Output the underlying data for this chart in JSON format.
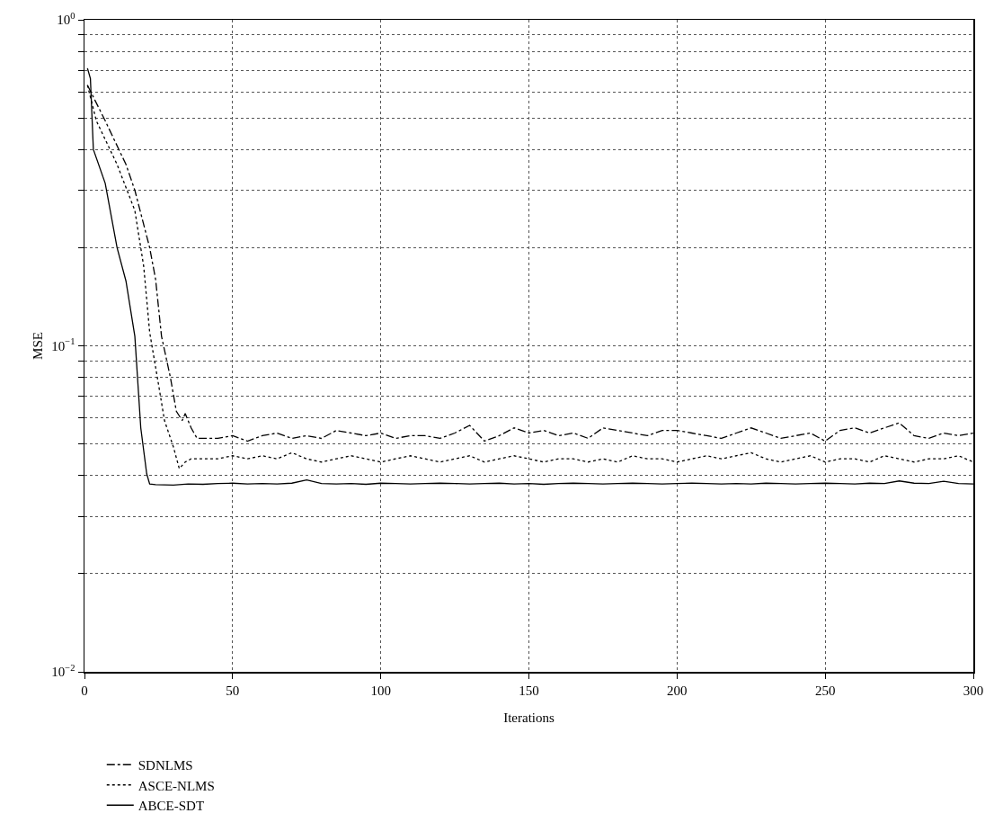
{
  "chart_data": {
    "type": "line",
    "xlabel": "Iterations",
    "ylabel": "MSE",
    "log": "y",
    "grid": true,
    "legend": "bottom left",
    "marker": "none",
    "xlim": [
      0,
      300
    ],
    "ylim": [
      0.01,
      1
    ],
    "xticks": [
      0,
      50,
      100,
      150,
      200,
      250,
      300
    ],
    "yticks": [
      {
        "value": 0.01,
        "label": "10$^{−2}$"
      },
      {
        "value": 0.02,
        "label": null
      },
      {
        "value": 0.03,
        "label": null
      },
      {
        "value": 0.04,
        "label": null
      },
      {
        "value": 0.05,
        "label": null
      },
      {
        "value": 0.06,
        "label": null
      },
      {
        "value": 0.07,
        "label": null
      },
      {
        "value": 0.08,
        "label": null
      },
      {
        "value": 0.09,
        "label": null
      },
      {
        "value": 0.1,
        "label": "10$^{−1}$"
      },
      {
        "value": 0.2,
        "label": null
      },
      {
        "value": 0.3,
        "label": null
      },
      {
        "value": 0.4,
        "label": null
      },
      {
        "value": 0.5,
        "label": null
      },
      {
        "value": 0.6,
        "label": null
      },
      {
        "value": 0.7,
        "label": null
      },
      {
        "value": 0.8,
        "label": null
      },
      {
        "value": 0.9,
        "label": null
      },
      {
        "value": 1,
        "label": "10$^{0}$"
      }
    ],
    "series": [
      {
        "name": "SDNLMS",
        "color": "#000000",
        "line_style": "dashdot",
        "x": [
          1,
          7,
          14,
          17,
          22,
          24,
          26,
          29,
          31,
          33,
          34,
          36,
          38,
          40,
          45,
          50,
          55,
          60,
          65,
          70,
          75,
          80,
          85,
          90,
          95,
          100,
          105,
          110,
          115,
          120,
          125,
          130,
          135,
          140,
          145,
          150,
          155,
          160,
          165,
          170,
          175,
          180,
          185,
          190,
          195,
          200,
          205,
          210,
          215,
          220,
          225,
          230,
          235,
          240,
          245,
          250,
          255,
          260,
          265,
          270,
          275,
          280,
          285,
          290,
          295,
          300
        ],
        "values": [
          0.63,
          0.49,
          0.36,
          0.3,
          0.2,
          0.16,
          0.107,
          0.08,
          0.063,
          0.059,
          0.062,
          0.056,
          0.052,
          0.052,
          0.052,
          0.053,
          0.051,
          0.053,
          0.054,
          0.052,
          0.053,
          0.052,
          0.055,
          0.054,
          0.053,
          0.054,
          0.052,
          0.053,
          0.053,
          0.052,
          0.054,
          0.057,
          0.051,
          0.053,
          0.056,
          0.054,
          0.055,
          0.053,
          0.054,
          0.052,
          0.056,
          0.055,
          0.054,
          0.053,
          0.055,
          0.055,
          0.054,
          0.053,
          0.052,
          0.054,
          0.056,
          0.054,
          0.052,
          0.053,
          0.054,
          0.051,
          0.055,
          0.056,
          0.054,
          0.056,
          0.058,
          0.053,
          0.052,
          0.054,
          0.053,
          0.054
        ]
      },
      {
        "name": "ASCE-NLMS",
        "color": "#000000",
        "line_style": "dotted",
        "x": [
          1,
          4,
          11,
          17,
          20,
          22,
          25,
          27,
          30,
          32,
          34,
          36,
          40,
          45,
          50,
          55,
          60,
          65,
          70,
          75,
          80,
          85,
          90,
          95,
          100,
          105,
          110,
          115,
          120,
          125,
          130,
          135,
          140,
          145,
          150,
          155,
          160,
          165,
          170,
          175,
          180,
          185,
          190,
          195,
          200,
          205,
          210,
          215,
          220,
          225,
          230,
          235,
          240,
          245,
          250,
          255,
          260,
          265,
          270,
          275,
          280,
          285,
          290,
          295,
          300
        ],
        "values": [
          0.63,
          0.49,
          0.36,
          0.26,
          0.175,
          0.11,
          0.076,
          0.059,
          0.049,
          0.042,
          0.044,
          0.045,
          0.045,
          0.045,
          0.046,
          0.045,
          0.046,
          0.045,
          0.047,
          0.045,
          0.044,
          0.045,
          0.046,
          0.045,
          0.044,
          0.045,
          0.046,
          0.045,
          0.044,
          0.045,
          0.046,
          0.044,
          0.045,
          0.046,
          0.045,
          0.044,
          0.045,
          0.045,
          0.044,
          0.045,
          0.044,
          0.046,
          0.045,
          0.045,
          0.044,
          0.045,
          0.046,
          0.045,
          0.046,
          0.047,
          0.045,
          0.044,
          0.045,
          0.046,
          0.044,
          0.045,
          0.045,
          0.044,
          0.046,
          0.045,
          0.044,
          0.045,
          0.045,
          0.046,
          0.044
        ]
      },
      {
        "name": "ABCE-SDT",
        "color": "#000000",
        "line_style": "solid",
        "x": [
          1,
          2,
          3,
          7,
          11,
          14,
          17,
          19,
          21,
          22,
          24,
          30,
          35,
          40,
          45,
          50,
          55,
          60,
          65,
          70,
          75,
          80,
          85,
          90,
          95,
          100,
          105,
          110,
          115,
          120,
          125,
          130,
          135,
          140,
          145,
          150,
          155,
          160,
          165,
          170,
          175,
          180,
          185,
          190,
          195,
          200,
          205,
          210,
          215,
          220,
          225,
          230,
          235,
          240,
          245,
          250,
          255,
          260,
          265,
          270,
          275,
          280,
          285,
          290,
          295,
          300
        ],
        "values": [
          0.71,
          0.66,
          0.4,
          0.315,
          0.2,
          0.158,
          0.107,
          0.056,
          0.0405,
          0.0377,
          0.0375,
          0.0374,
          0.0377,
          0.0376,
          0.0378,
          0.0379,
          0.0377,
          0.0378,
          0.0377,
          0.0379,
          0.0388,
          0.0378,
          0.0377,
          0.0378,
          0.0376,
          0.0379,
          0.0378,
          0.0377,
          0.0378,
          0.0379,
          0.0378,
          0.0377,
          0.0378,
          0.0379,
          0.0377,
          0.0378,
          0.0376,
          0.0378,
          0.0379,
          0.0378,
          0.0377,
          0.0378,
          0.0379,
          0.0378,
          0.0377,
          0.0378,
          0.0379,
          0.0378,
          0.0377,
          0.0378,
          0.0377,
          0.0379,
          0.0378,
          0.0377,
          0.0378,
          0.0379,
          0.0378,
          0.0377,
          0.0379,
          0.0378,
          0.0385,
          0.0379,
          0.0378,
          0.0384,
          0.0378,
          0.0377
        ]
      }
    ]
  }
}
